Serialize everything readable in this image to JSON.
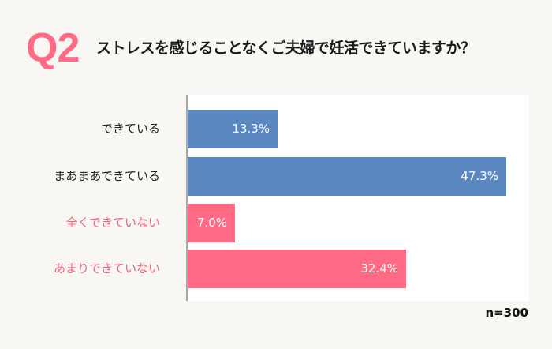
{
  "header": {
    "badge": "Q2",
    "question": "ストレスを感じることなくご夫婦で妊活できていますか？"
  },
  "colors": {
    "accent_pink": "#ff6b84",
    "bar_blue": "#5b88c0",
    "bar_pink": "#ff6b84",
    "label_dark": "#222222",
    "label_pink": "#f0647c",
    "background": "#f8f7f3",
    "plot_background": "#ffffff"
  },
  "footer": {
    "sample_size": "n=300"
  },
  "chart_data": {
    "type": "bar",
    "orientation": "horizontal",
    "title": "ストレスを感じることなくご夫婦で妊活できていますか？",
    "categories": [
      "できている",
      "まあまあできている",
      "全くできていない",
      "あまりできていない"
    ],
    "values": [
      13.3,
      47.3,
      7.0,
      32.4
    ],
    "value_labels": [
      "13.3%",
      "47.3%",
      "7.0%",
      "32.4%"
    ],
    "bar_colors": [
      "#5b88c0",
      "#5b88c0",
      "#ff6b84",
      "#ff6b84"
    ],
    "label_colors": [
      "#222222",
      "#222222",
      "#f0647c",
      "#f0647c"
    ],
    "xlabel": "",
    "ylabel": "",
    "unit": "%",
    "grid": false,
    "legend": "none",
    "note": "n=300"
  }
}
